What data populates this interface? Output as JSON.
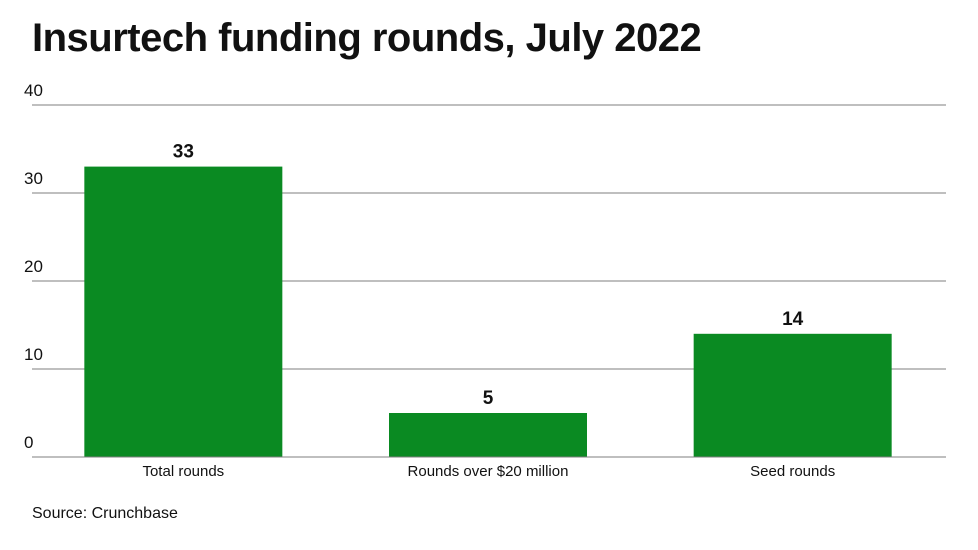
{
  "title": "Insurtech funding rounds, July 2022",
  "source": "Source: Crunchbase",
  "colors": {
    "bar": "#0a8a22",
    "grid": "#7f7f7f",
    "text": "#111111"
  },
  "chart_data": {
    "type": "bar",
    "title": "Insurtech funding rounds, July 2022",
    "xlabel": "",
    "ylabel": "",
    "categories": [
      "Total rounds",
      "Rounds over $20 million",
      "Seed rounds"
    ],
    "values": [
      33,
      5,
      14
    ],
    "data_labels": [
      "33",
      "5",
      "14"
    ],
    "yticks": [
      0,
      10,
      20,
      30,
      40
    ],
    "ylim": [
      0,
      40
    ],
    "grid": true,
    "legend": "none"
  }
}
